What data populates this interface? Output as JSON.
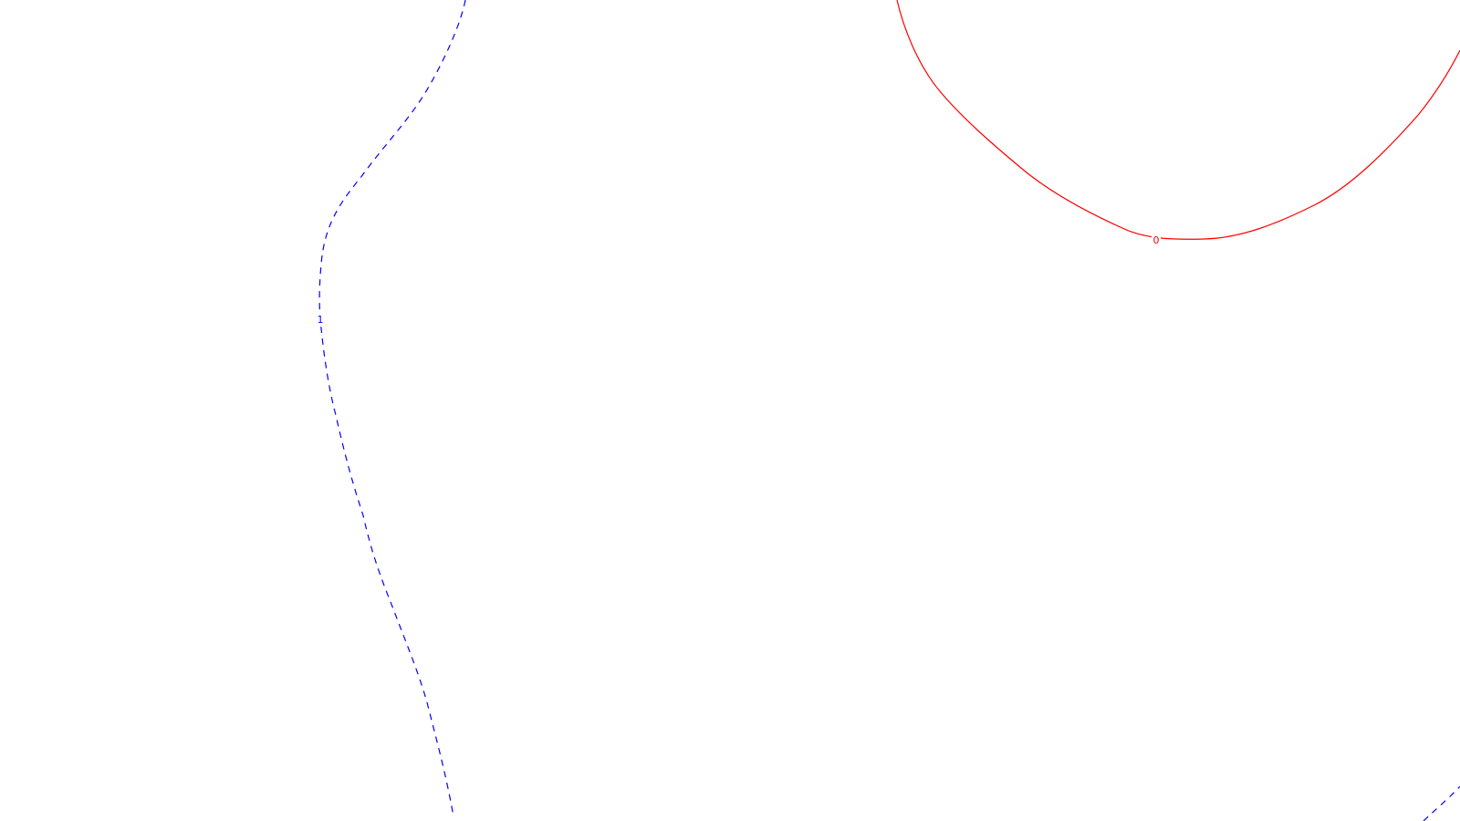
{
  "contours": [
    {
      "id": "contour-0",
      "label": "0",
      "color": "#ff0000",
      "style": "solid"
    },
    {
      "id": "contour-1",
      "label": "1",
      "color": "#0000ff",
      "style": "dashed"
    }
  ]
}
